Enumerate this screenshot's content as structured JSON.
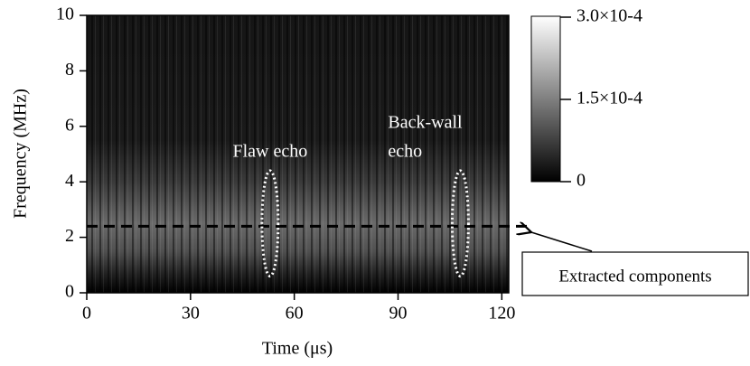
{
  "chart_data": {
    "type": "spectrogram",
    "x_label": "Time (μs)",
    "y_label": "Frequency (MHz)",
    "xlim": [
      0,
      122
    ],
    "xticks": [
      0,
      30,
      60,
      90,
      120
    ],
    "ylim": [
      0,
      10
    ],
    "yticks": [
      0,
      2,
      4,
      6,
      8,
      10
    ],
    "colorbar": {
      "lim": [
        0,
        0.0003
      ],
      "ticks": [
        {
          "value": 0.0003,
          "label": "3.0×10-4"
        },
        {
          "value": 0.00015,
          "label": "1.5×10-4"
        },
        0
      ]
    },
    "annotations": [
      {
        "text": [
          "Flaw echo"
        ],
        "x": 53,
        "y": [
          0.6,
          4.4
        ]
      },
      {
        "text": [
          "Back-wall",
          "echo"
        ],
        "x": 108,
        "y": [
          0.6,
          4.4
        ]
      }
    ],
    "threshold": {
      "y": 2.4,
      "label": "Extracted components"
    }
  }
}
